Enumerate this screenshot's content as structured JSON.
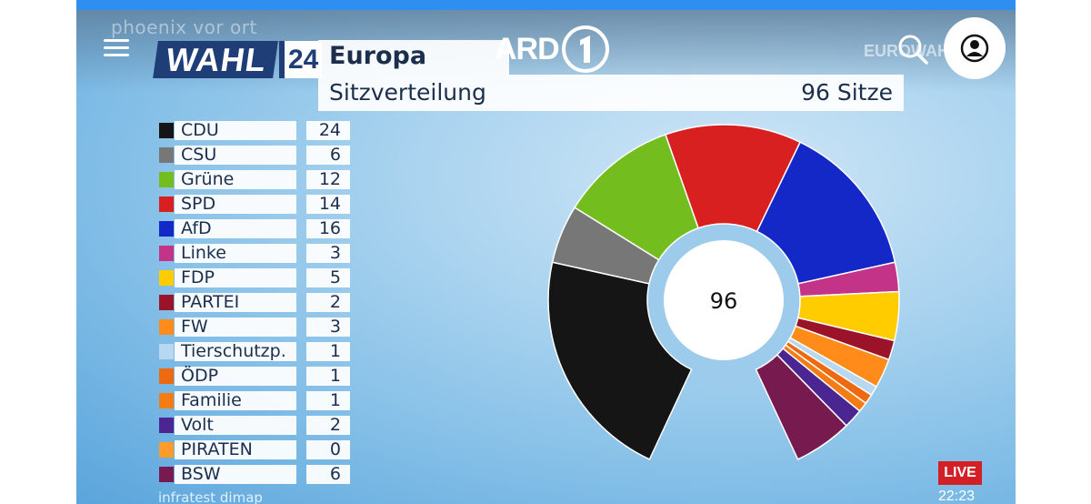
{
  "player": {
    "watermark": "phoenix vor ort",
    "live_badge": "LIVE",
    "clock": "22:23",
    "source": "infratest dimap",
    "euro_watermark": "EUROWAH"
  },
  "app": {
    "brand": "ARD",
    "menu_icon": "hamburger-menu-icon",
    "search_icon": "search-icon",
    "profile_icon": "user-avatar-icon"
  },
  "graphic": {
    "logo_word": "WAHL",
    "logo_number": "24",
    "region": "Europa",
    "subtitle": "Sitzverteilung",
    "total_label": "96 Sitze"
  },
  "chart_data": {
    "type": "pie",
    "variant": "semicircle-donut",
    "title": "Sitzverteilung",
    "center_label": "96",
    "total": 96,
    "categories": [
      "CDU",
      "CSU",
      "Grüne",
      "SPD",
      "AfD",
      "Linke",
      "FDP",
      "PARTEI",
      "FW",
      "Tierschutzp.",
      "ÖDP",
      "Familie",
      "Volt",
      "PIRATEN",
      "BSW"
    ],
    "values": [
      24,
      6,
      12,
      14,
      16,
      3,
      5,
      2,
      3,
      1,
      1,
      1,
      2,
      0,
      6
    ],
    "colors": [
      "#151515",
      "#777777",
      "#74bd1f",
      "#d82020",
      "#1428c8",
      "#c33488",
      "#ffcc00",
      "#9a1328",
      "#ff8c1a",
      "#b8d7f0",
      "#ee6a10",
      "#f47c14",
      "#4b2591",
      "#ff9b2a",
      "#761a4f"
    ]
  }
}
